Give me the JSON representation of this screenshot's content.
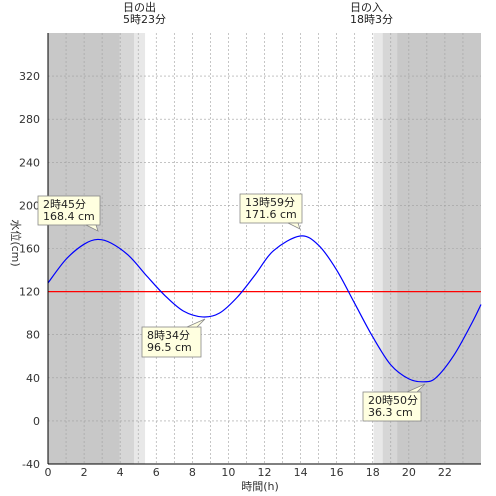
{
  "chart_data": {
    "type": "line",
    "xlabel": "時間(h)",
    "ylabel": "水位(cm)",
    "xlim": [
      0,
      24
    ],
    "ylim": [
      -40,
      360
    ],
    "x_ticks": [
      0,
      2,
      4,
      6,
      8,
      10,
      12,
      14,
      16,
      18,
      20,
      22
    ],
    "y_ticks": [
      -40,
      0,
      40,
      80,
      120,
      160,
      200,
      240,
      280,
      320
    ],
    "grid": true,
    "reference_line": {
      "value": 120,
      "color": "#ff0000"
    },
    "series": [
      {
        "color": "#0000ff",
        "x": [
          0,
          1,
          2,
          2.75,
          3.5,
          4.5,
          5.5,
          6.5,
          7.5,
          8.57,
          9.5,
          10.5,
          11.5,
          12.5,
          13.98,
          15,
          16,
          17,
          18,
          19,
          20,
          20.83,
          21.5,
          22.5,
          23.5,
          24
        ],
        "y": [
          128,
          150,
          164,
          168.4,
          165,
          153,
          134,
          116,
          102,
          96.5,
          100,
          115,
          136,
          158,
          171.6,
          163,
          140,
          109,
          78,
          52,
          39,
          36.3,
          40,
          61,
          91,
          108
        ]
      }
    ],
    "annotations": [
      {
        "time": "2時45分",
        "level": "168.4 cm",
        "x": 2.75,
        "y": 168.4
      },
      {
        "time": "8時34分",
        "level": "96.5 cm",
        "x": 8.57,
        "y": 96.5
      },
      {
        "time": "13時59分",
        "level": "171.6 cm",
        "x": 13.98,
        "y": 171.6
      },
      {
        "time": "20時50分",
        "level": "36.3 cm",
        "x": 20.83,
        "y": 36.3
      }
    ],
    "sunrise": {
      "label": "日の出",
      "time": "5時23分",
      "hour": 5.383
    },
    "sunset": {
      "label": "日の入",
      "time": "18時3分",
      "hour": 18.05
    },
    "colors": {
      "night": "#c8c8c8",
      "twilight_dark": "#d6d6d6",
      "twilight_light": "#e8e8e8",
      "day": "#ffffff",
      "grid": "#a0a0a0",
      "annotation_fill": "#ffffe0",
      "annotation_border": "#888888"
    }
  }
}
